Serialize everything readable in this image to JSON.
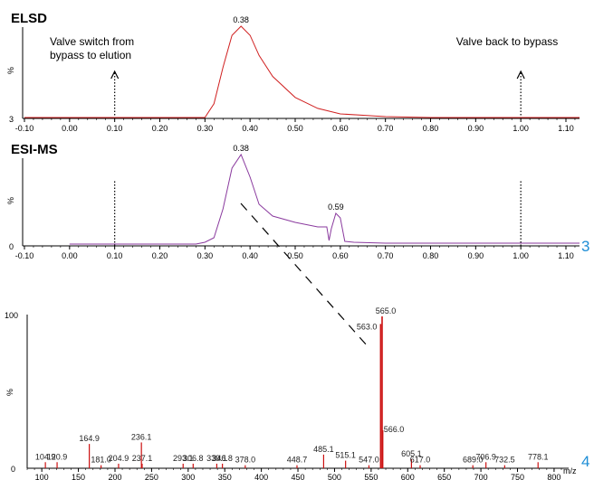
{
  "chart_data": [
    {
      "type": "line",
      "title": "ELSD",
      "ylabel": "%",
      "y_tick": "3",
      "xlim": [
        -0.1,
        1.13
      ],
      "x_ticks": [
        "-0.10",
        "0.00",
        "0.10",
        "0.20",
        "0.30",
        "0.40",
        "0.50",
        "0.60",
        "0.70",
        "0.80",
        "0.90",
        "1.00",
        "1.10"
      ],
      "series": [
        {
          "x": [
            -0.1,
            0.3,
            0.32,
            0.34,
            0.36,
            0.38,
            0.4,
            0.42,
            0.45,
            0.5,
            0.55,
            0.6,
            0.7,
            0.8,
            1.13
          ],
          "y": [
            0,
            0,
            15,
            55,
            90,
            100,
            90,
            68,
            45,
            22,
            10,
            4,
            1,
            0,
            0
          ],
          "color": "#d02020"
        }
      ],
      "peak_labels": [
        {
          "x": 0.38,
          "text": "0.38"
        }
      ],
      "markers": [
        {
          "x": 0.1,
          "text_lines": [
            "Valve switch from",
            "bypass to elution"
          ]
        },
        {
          "x": 1.0,
          "text_lines": [
            "Valve back to bypass"
          ]
        }
      ]
    },
    {
      "type": "line",
      "title": "ESI-MS",
      "ylabel": "%",
      "y_tick": "0",
      "xlim": [
        -0.1,
        1.13
      ],
      "x_ticks": [
        "-0.10",
        "0.00",
        "0.10",
        "0.20",
        "0.30",
        "0.40",
        "0.50",
        "0.60",
        "0.70",
        "0.80",
        "0.90",
        "1.00",
        "1.10"
      ],
      "series": [
        {
          "x": [
            0.0,
            0.28,
            0.3,
            0.32,
            0.34,
            0.36,
            0.38,
            0.4,
            0.42,
            0.45,
            0.5,
            0.55,
            0.57,
            0.575,
            0.58,
            0.59,
            0.6,
            0.61,
            0.63,
            0.7,
            1.13
          ],
          "y": [
            1,
            1,
            3,
            8,
            40,
            85,
            100,
            75,
            45,
            32,
            25,
            20,
            20,
            5,
            18,
            35,
            30,
            4,
            3,
            2,
            2
          ],
          "color": "#8a3a9e"
        }
      ],
      "peak_labels": [
        {
          "x": 0.38,
          "text": "0.38"
        },
        {
          "x": 0.59,
          "text": "0.59"
        }
      ]
    },
    {
      "type": "bar",
      "title": "",
      "ylabel": "%",
      "xlabel": "m/z",
      "y_ticks": [
        "100",
        "0"
      ],
      "xlim": [
        80,
        810
      ],
      "x_ticks": [
        "100",
        "150",
        "200",
        "250",
        "300",
        "350",
        "400",
        "450",
        "500",
        "550",
        "600",
        "650",
        "700",
        "750",
        "800"
      ],
      "x": [
        104.9,
        120.9,
        164.9,
        181.0,
        204.9,
        236.1,
        237.1,
        293.1,
        306.8,
        339.1,
        346.8,
        378.0,
        448.7,
        485.1,
        515.1,
        547.0,
        563.0,
        565.0,
        566.0,
        605.1,
        617.0,
        689.0,
        706.9,
        732.5,
        778.1
      ],
      "values": [
        4,
        4,
        16,
        2,
        3,
        17,
        3,
        3,
        3,
        3,
        3,
        2,
        2,
        9,
        5,
        2,
        95,
        100,
        25,
        6,
        2,
        2,
        4,
        2,
        4
      ],
      "color": "#cc1010",
      "labels": [
        "104.9",
        "120.9",
        "164.9",
        "181.0",
        "204.9",
        "236.1",
        "237.1",
        "293.1",
        "306.8",
        "339.1",
        "346.8",
        "378.0",
        "448.7",
        "485.1",
        "515.1",
        "547.0",
        "563.0",
        "565.0",
        "566.0",
        "605.1",
        "617.0",
        "689.0",
        "706.9",
        "732.5",
        "778.1"
      ]
    }
  ],
  "side_labels": [
    "3",
    "4"
  ]
}
